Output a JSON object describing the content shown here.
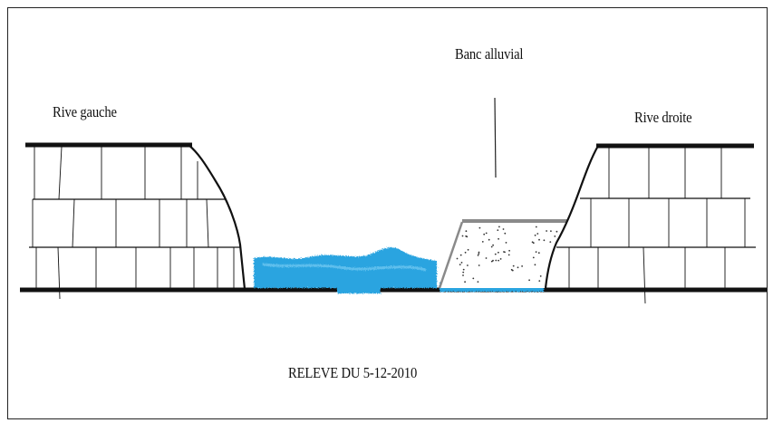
{
  "labels": {
    "left_bank": "Rive gauche",
    "right_bank": "Rive droite",
    "sandbar": "Banc alluvial",
    "caption": "RELEVE DU 5-12-2010"
  },
  "colors": {
    "outline": "#111111",
    "water": "#2aa4e0",
    "water_light": "#6cc6f0",
    "sandbar_top": "#8a8a8a",
    "sandbar_dots": "#333333"
  }
}
